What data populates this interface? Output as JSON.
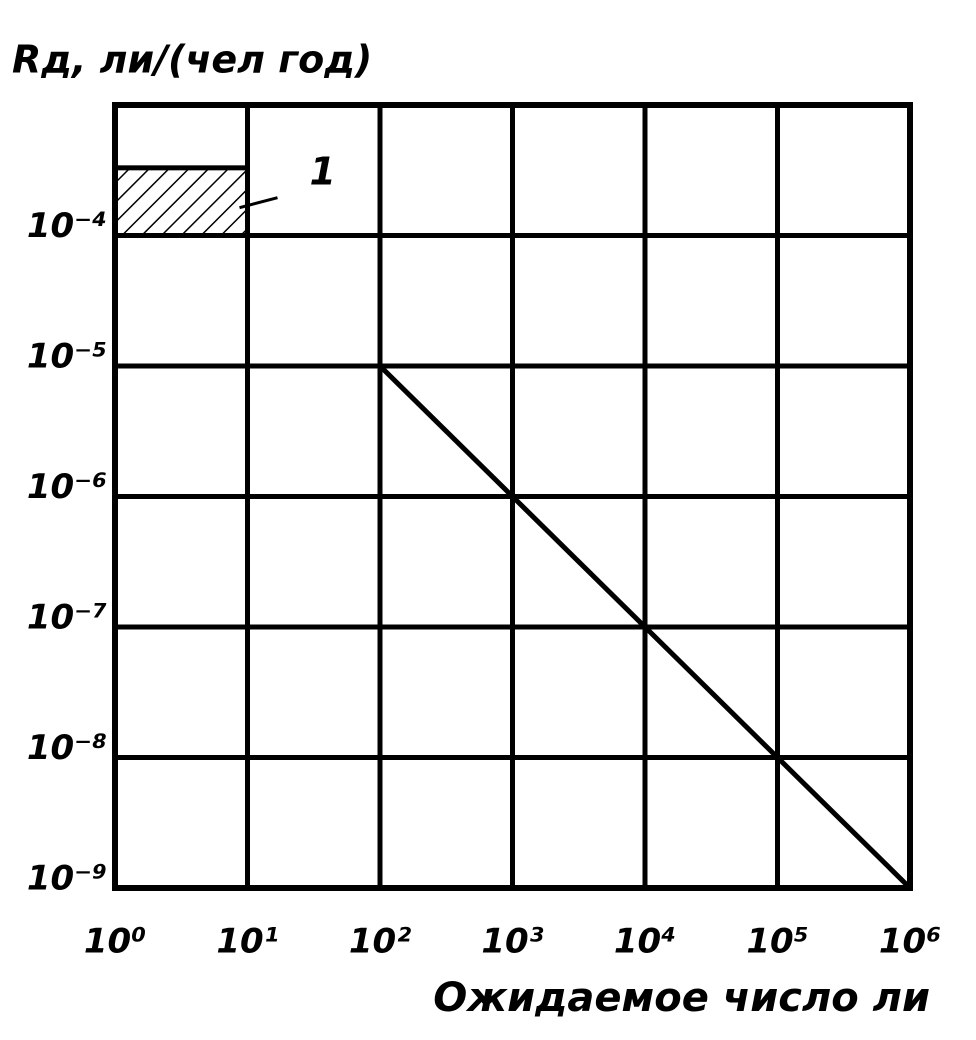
{
  "chart_data": {
    "type": "line",
    "log_x": true,
    "log_y": true,
    "grid": true,
    "color": "#000000",
    "y_label": "Rд, ли/(чел год)",
    "x_label": "Ожидаемое число ли",
    "xlim": [
      1,
      1000000
    ],
    "ylim": [
      1e-09,
      0.001
    ],
    "xticks": [
      {
        "value": 1,
        "label": "10⁰"
      },
      {
        "value": 10,
        "label": "10¹"
      },
      {
        "value": 100,
        "label": "10²"
      },
      {
        "value": 1000,
        "label": "10³"
      },
      {
        "value": 10000,
        "label": "10⁴"
      },
      {
        "value": 100000,
        "label": "10⁵"
      },
      {
        "value": 1000000,
        "label": "10⁶"
      }
    ],
    "yticks": [
      {
        "value": 0.0001,
        "label": "10⁻⁴"
      },
      {
        "value": 1e-05,
        "label": "10⁻⁵"
      },
      {
        "value": 1e-06,
        "label": "10⁻⁶"
      },
      {
        "value": 1e-07,
        "label": "10⁻⁷"
      },
      {
        "value": 1e-08,
        "label": "10⁻⁸"
      },
      {
        "value": 1e-09,
        "label": "10⁻⁹"
      }
    ],
    "x": [
      100,
      1000,
      10000,
      100000,
      1000000
    ],
    "values": [
      1e-05,
      1e-06,
      1e-07,
      1e-08,
      1e-09
    ],
    "region": {
      "label": "1",
      "x": [
        1,
        10
      ],
      "y": [
        0.0001,
        0.00033
      ]
    }
  }
}
